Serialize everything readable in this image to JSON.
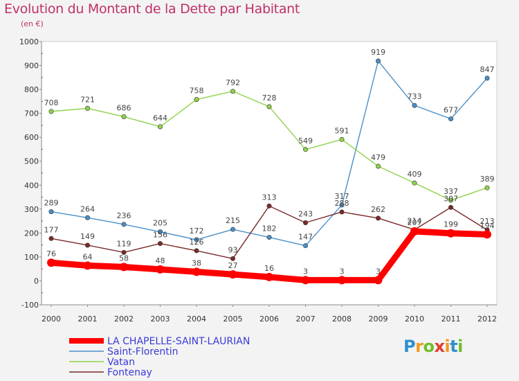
{
  "header": {
    "title": "Evolution du Montant de la Dette par Habitant",
    "unit": "(en €)"
  },
  "logo": {
    "letters": [
      "P",
      "r",
      "o",
      "x",
      "i",
      "t",
      "i"
    ],
    "colors": [
      "#2d8fd1",
      "#f39a1c",
      "#6fbf2a",
      "#e33b2e",
      "#f39a1c",
      "#2d8fd1",
      "#6fbf2a"
    ]
  },
  "chart_data": {
    "type": "line",
    "title": "Evolution du Montant de la Dette par Habitant",
    "ylabel": "(en €)",
    "xlabel": "",
    "x": [
      "2000",
      "2001",
      "2002",
      "2003",
      "2004",
      "2005",
      "2006",
      "2007",
      "2008",
      "2009",
      "2010",
      "2011",
      "2012"
    ],
    "ylim": [
      -100,
      1000
    ],
    "yticks": [
      -100,
      0,
      100,
      200,
      300,
      400,
      500,
      600,
      700,
      800,
      900,
      1000
    ],
    "grid": false,
    "legend_position": "bottom-left",
    "series": [
      {
        "name": "Saint-Florentin",
        "color": "#4a8fc7",
        "values": [
          289,
          264,
          236,
          205,
          172,
          215,
          182,
          147,
          317,
          919,
          733,
          677,
          847
        ]
      },
      {
        "name": "Vatan",
        "color": "#8fd34a",
        "values": [
          708,
          721,
          686,
          644,
          758,
          792,
          728,
          549,
          591,
          479,
          409,
          337,
          389
        ]
      },
      {
        "name": "Fontenay",
        "color": "#7a2a2a",
        "values": [
          177,
          149,
          119,
          156,
          126,
          93,
          313,
          243,
          288,
          262,
          214,
          307,
          213
        ]
      },
      {
        "name": "LA CHAPELLE-SAINT-LAURIAN",
        "color": "#ff0000",
        "values": [
          76,
          64,
          58,
          48,
          38,
          27,
          16,
          3,
          3,
          3,
          207,
          199,
          194
        ]
      }
    ]
  }
}
